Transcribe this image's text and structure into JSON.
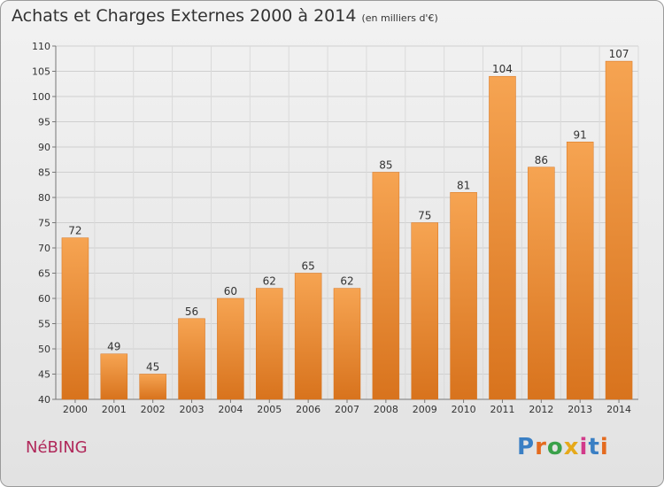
{
  "header": {
    "title": "Achats et Charges Externes 2000 à 2014",
    "unit": "(en milliers d'€)"
  },
  "footer": {
    "place": "NéBING",
    "logo": "Proxiti"
  },
  "colors": {
    "bar": "#f0923a",
    "bar_light": "#f6a452",
    "bar_dark": "#d8731d",
    "place": "#b0285a",
    "logo": [
      "#3a7fc4",
      "#e46b1f",
      "#3aa14a",
      "#e6a91a",
      "#d23a8a",
      "#3a7fc4",
      "#e46b1f"
    ]
  },
  "chart_data": {
    "type": "bar",
    "categories": [
      "2000",
      "2001",
      "2002",
      "2003",
      "2004",
      "2005",
      "2006",
      "2007",
      "2008",
      "2009",
      "2010",
      "2011",
      "2012",
      "2013",
      "2014"
    ],
    "values": [
      72,
      49,
      45,
      56,
      60,
      62,
      65,
      62,
      85,
      75,
      81,
      104,
      86,
      91,
      107
    ],
    "title": "Achats et Charges Externes 2000 à 2014",
    "subtitle": "(en milliers d'€)",
    "ylim": [
      40,
      110
    ],
    "yticks": [
      40,
      45,
      50,
      55,
      60,
      65,
      70,
      75,
      80,
      85,
      90,
      95,
      100,
      105,
      110
    ],
    "grid": true,
    "legend": "none"
  }
}
